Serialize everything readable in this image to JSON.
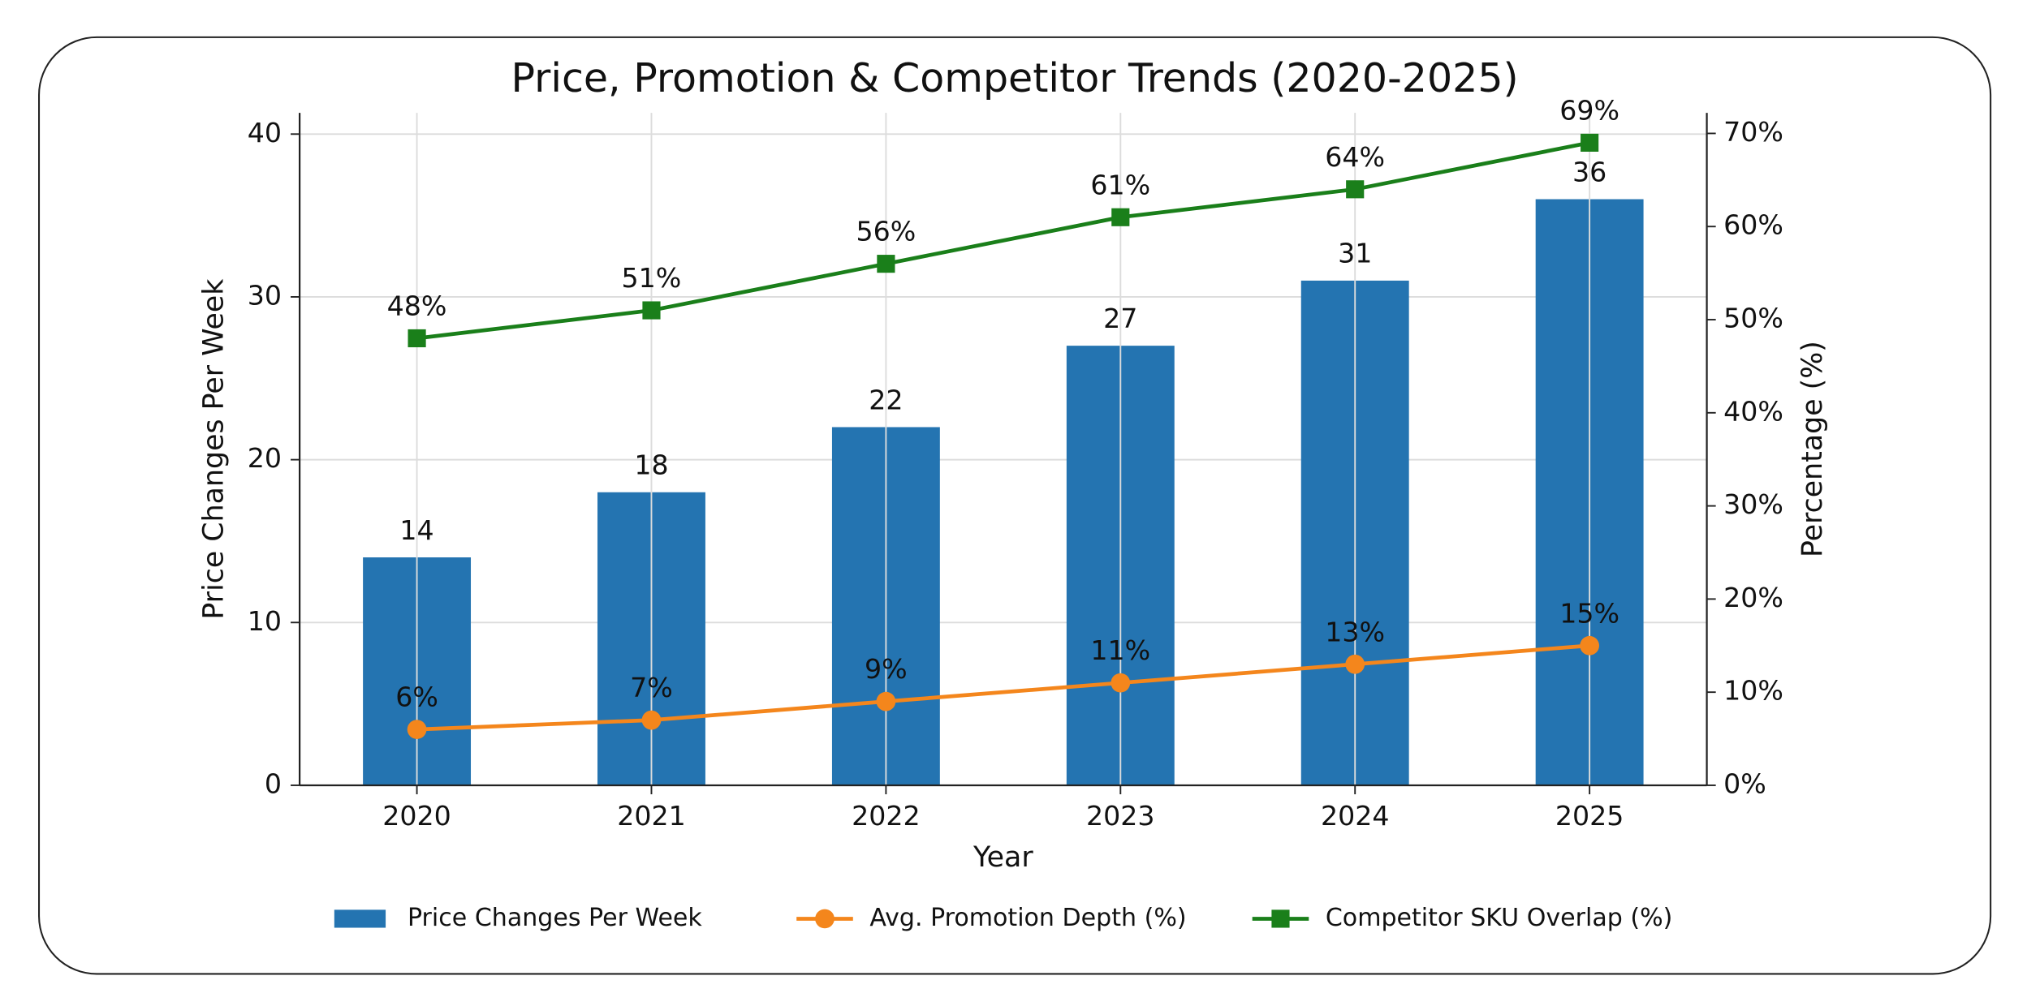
{
  "chart_data": {
    "type": "bar",
    "title": "Price, Promotion & Competitor Trends (2020-2025)",
    "x_label": "Year",
    "y_label": "Price Changes Per Week",
    "y2_label": "Percentage (%)",
    "categories": [
      "2020",
      "2021",
      "2022",
      "2023",
      "2024",
      "2025"
    ],
    "series": [
      {
        "name": "Price Changes Per Week",
        "type": "bar",
        "color": "#2474b1",
        "values": [
          14,
          18,
          22,
          27,
          31,
          36
        ]
      },
      {
        "name": "Avg. Promotion Depth (%)",
        "type": "line",
        "marker": "circle",
        "axis": "y2",
        "color": "#f4861c",
        "values": [
          6,
          7,
          9,
          11,
          13,
          15
        ],
        "value_labels": [
          "6%",
          "7%",
          "9%",
          "11%",
          "13%",
          "15%"
        ]
      },
      {
        "name": "Competitor SKU Overlap (%)",
        "type": "line",
        "marker": "square",
        "axis": "y2",
        "color": "#1a7f1a",
        "values": [
          48,
          51,
          56,
          61,
          64,
          69
        ],
        "value_labels": [
          "48%",
          "51%",
          "56%",
          "61%",
          "64%",
          "69%"
        ]
      }
    ],
    "ylim": [
      0,
      41.3
    ],
    "yticks": [
      0,
      10,
      20,
      30,
      40
    ],
    "y2lim": [
      0,
      72.2
    ],
    "y2ticks": [
      {
        "value": 0,
        "label": "0%"
      },
      {
        "value": 10,
        "label": "10%"
      },
      {
        "value": 20,
        "label": "20%"
      },
      {
        "value": 30,
        "label": "30%"
      },
      {
        "value": 40,
        "label": "40%"
      },
      {
        "value": 50,
        "label": "50%"
      },
      {
        "value": 60,
        "label": "60%"
      },
      {
        "value": 70,
        "label": "70%"
      }
    ],
    "grid": true,
    "legend": "bottom"
  }
}
